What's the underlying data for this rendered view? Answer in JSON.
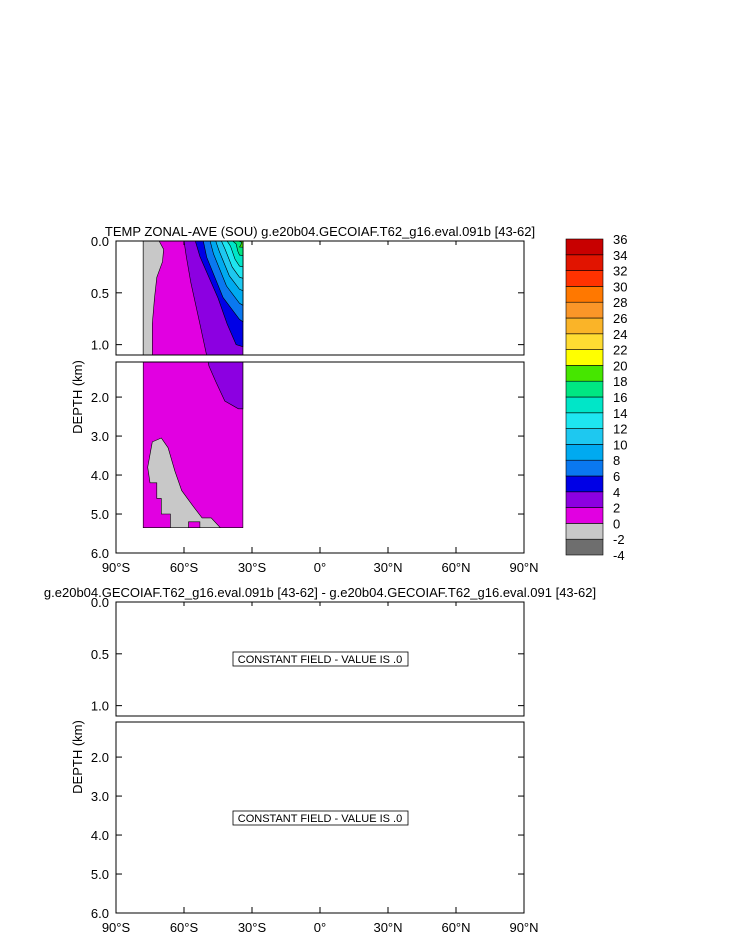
{
  "chart_data": [
    {
      "type": "contour",
      "title": "TEMP ZONAL-AVE (SOU) g.e20b04.GECOIAF.T62_g16.eval.091b [43-62]",
      "ylabel": "DEPTH (km)",
      "xlim": [
        -90,
        90
      ],
      "ylim_upper": [
        0.0,
        1.1
      ],
      "ylim_lower": [
        1.1,
        6.0
      ],
      "x_ticks": [
        {
          "value": -90,
          "label": "90°S"
        },
        {
          "value": -60,
          "label": "60°S"
        },
        {
          "value": -30,
          "label": "30°S"
        },
        {
          "value": 0,
          "label": "0°"
        },
        {
          "value": 30,
          "label": "30°N"
        },
        {
          "value": 60,
          "label": "60°N"
        },
        {
          "value": 90,
          "label": "90°N"
        }
      ],
      "y_ticks_upper": [
        {
          "value": 0.0,
          "label": "0.0"
        },
        {
          "value": 0.5,
          "label": "0.5"
        },
        {
          "value": 1.0,
          "label": "1.0"
        }
      ],
      "y_ticks_lower": [
        {
          "value": 2.0,
          "label": "2.0"
        },
        {
          "value": 3.0,
          "label": "3.0"
        },
        {
          "value": 4.0,
          "label": "4.0"
        },
        {
          "value": 5.0,
          "label": "5.0"
        },
        {
          "value": 6.0,
          "label": "6.0"
        }
      ],
      "data_extent": {
        "lat_min": -78,
        "lat_max": -34,
        "max_depth_km": 5.35
      },
      "colorbar": {
        "levels": [
          -4,
          -2,
          0,
          2,
          4,
          6,
          8,
          10,
          12,
          14,
          16,
          18,
          20,
          22,
          24,
          26,
          28,
          30,
          32,
          34,
          36
        ],
        "colors": [
          "#6e6e6e",
          "#c8c8c8",
          "#e100e1",
          "#8c00e1",
          "#0000e6",
          "#0a78f0",
          "#00aaf0",
          "#1ec8f0",
          "#1ee6f0",
          "#00e6c8",
          "#00e682",
          "#46e600",
          "#ffff00",
          "#ffdc32",
          "#fab428",
          "#fa9628",
          "#ff7800",
          "#ff3200",
          "#e11400",
          "#c80000"
        ]
      },
      "regions": [
        {
          "label": "land/undefined",
          "color": "#c8c8c8"
        },
        {
          "label": "0 to 2",
          "color": "#e100e1"
        },
        {
          "label": "2 to 4",
          "color": "#8c00e1"
        },
        {
          "label": "4 to 6",
          "color": "#0000e6"
        },
        {
          "label": "6 to 8",
          "color": "#0a78f0"
        },
        {
          "label": "8 to 10",
          "color": "#00aaf0"
        },
        {
          "label": "10 to 12",
          "color": "#1ec8f0"
        },
        {
          "label": "12 to 14",
          "color": "#1ee6f0"
        },
        {
          "label": "14 to 16",
          "color": "#00e6c8"
        },
        {
          "label": "16 to 18",
          "color": "#00e682"
        },
        {
          "label": "18 to 20",
          "color": "#46e600"
        }
      ]
    },
    {
      "type": "contour",
      "title": "g.e20b04.GECOIAF.T62_g16.eval.091b [43-62] - g.e20b04.GECOIAF.T62_g16.eval.091 [43-62]",
      "ylabel": "DEPTH (km)",
      "xlim": [
        -90,
        90
      ],
      "ylim_upper": [
        0.0,
        1.1
      ],
      "ylim_lower": [
        1.1,
        6.0
      ],
      "annotations": [
        "CONSTANT FIELD - VALUE IS .0",
        "CONSTANT FIELD - VALUE IS .0"
      ]
    }
  ]
}
